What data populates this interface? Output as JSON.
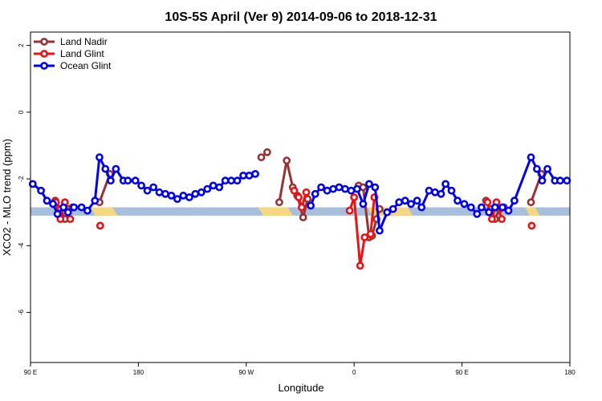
{
  "chart_data": {
    "type": "line",
    "title": "10S-5S April (Ver 9)   2014-09-06 to 2018-12-31",
    "xlabel": "Longitude",
    "ylabel": "XCO2 - MLO trend (ppm)",
    "xlim": [
      0,
      360
    ],
    "ylim": [
      -7.5,
      2.4
    ],
    "x_ticks": [
      {
        "value": 0,
        "label": "90 E"
      },
      {
        "value": 72,
        "label": "180"
      },
      {
        "value": 144,
        "label": "90 W"
      },
      {
        "value": 216,
        "label": "0"
      },
      {
        "value": 288,
        "label": "90 E"
      },
      {
        "value": 360,
        "label": "180"
      }
    ],
    "y_ticks": [
      2,
      0,
      -2,
      -4,
      -6
    ],
    "grid": false,
    "legend_position": "top-left",
    "band": {
      "y_range": [
        -3.1,
        -2.85
      ],
      "base_color": "#a7bfdc",
      "highlight_color": "#f6d67e",
      "highlight_ranges": [
        [
          40,
          58
        ],
        [
          152,
          175
        ],
        [
          225,
          255
        ],
        [
          330,
          340
        ]
      ]
    },
    "series": [
      {
        "name": "Land Nadir",
        "color": "#993333",
        "segments": [
          [
            [
              16.5,
              -2.65
            ],
            [
              20,
              -2.9
            ],
            [
              23,
              -3.2
            ],
            [
              25.5,
              -2.9
            ],
            [
              28,
              -2.85
            ]
          ],
          [
            [
              46,
              -2.7
            ],
            [
              53,
              -1.85
            ]
          ],
          [
            [
              154,
              -1.35
            ],
            [
              158,
              -1.2
            ]
          ],
          [
            [
              166,
              -2.7
            ],
            [
              171,
              -1.45
            ],
            [
              175,
              -2.25
            ],
            [
              178,
              -2.5
            ],
            [
              182,
              -3.15
            ],
            [
              185,
              -2.6
            ]
          ],
          [
            [
              219,
              -2.2
            ],
            [
              222,
              -2.25
            ],
            [
              226,
              -3.75
            ],
            [
              228,
              -3.7
            ],
            [
              231,
              -3.2
            ],
            [
              233,
              -2.9
            ]
          ],
          [
            [
              304,
              -2.65
            ],
            [
              307,
              -2.9
            ],
            [
              310,
              -3.2
            ],
            [
              313,
              -2.9
            ],
            [
              316,
              -2.85
            ]
          ],
          [
            [
              334,
              -2.7
            ],
            [
              341,
              -1.85
            ]
          ]
        ]
      },
      {
        "name": "Land Glint",
        "color": "#ee1111",
        "segments": [
          [
            [
              17,
              -2.7
            ],
            [
              20,
              -3.2
            ],
            [
              23,
              -2.7
            ],
            [
              26.5,
              -3.2
            ]
          ],
          [
            [
              46.5,
              -3.4
            ]
          ],
          [
            [
              176,
              -2.35
            ],
            [
              179,
              -2.55
            ],
            [
              181,
              -2.85
            ],
            [
              184,
              -2.4
            ]
          ],
          [
            [
              213,
              -2.95
            ],
            [
              216,
              -2.55
            ],
            [
              220,
              -4.6
            ],
            [
              223,
              -3.75
            ],
            [
              227,
              -3.65
            ],
            [
              229.5,
              -2.55
            ]
          ],
          [
            [
              305,
              -2.7
            ],
            [
              308,
              -3.2
            ],
            [
              311,
              -2.7
            ],
            [
              314.5,
              -3.2
            ]
          ],
          [
            [
              334.5,
              -3.4
            ]
          ]
        ]
      },
      {
        "name": "Ocean Glint",
        "color": "#0000ee",
        "segments": [
          [
            [
              1.5,
              -2.15
            ],
            [
              7,
              -2.35
            ],
            [
              11,
              -2.65
            ],
            [
              15,
              -2.75
            ],
            [
              18,
              -3.05
            ],
            [
              22,
              -2.85
            ],
            [
              25,
              -3.0
            ],
            [
              29,
              -2.85
            ],
            [
              34,
              -2.85
            ],
            [
              38,
              -2.95
            ],
            [
              43,
              -2.65
            ],
            [
              46,
              -1.35
            ],
            [
              50,
              -1.7
            ],
            [
              53.5,
              -2.05
            ],
            [
              57,
              -1.7
            ],
            [
              62,
              -2.05
            ],
            [
              65,
              -2.05
            ],
            [
              70,
              -2.05
            ],
            [
              74,
              -2.2
            ],
            [
              78,
              -2.35
            ],
            [
              82,
              -2.25
            ],
            [
              86,
              -2.4
            ],
            [
              90,
              -2.45
            ],
            [
              94,
              -2.5
            ],
            [
              98,
              -2.6
            ],
            [
              102,
              -2.5
            ],
            [
              106,
              -2.55
            ],
            [
              110,
              -2.45
            ],
            [
              114,
              -2.4
            ],
            [
              118,
              -2.3
            ],
            [
              122,
              -2.2
            ],
            [
              126,
              -2.25
            ],
            [
              130,
              -2.05
            ],
            [
              134,
              -2.05
            ],
            [
              138,
              -2.05
            ],
            [
              142,
              -1.9
            ],
            [
              146,
              -1.9
            ],
            [
              150,
              -1.85
            ]
          ],
          [
            [
              187,
              -2.8
            ],
            [
              190,
              -2.45
            ],
            [
              194,
              -2.25
            ],
            [
              198,
              -2.35
            ],
            [
              202,
              -2.3
            ],
            [
              206,
              -2.25
            ],
            [
              210,
              -2.3
            ],
            [
              214,
              -2.35
            ],
            [
              218,
              -2.3
            ],
            [
              222,
              -2.75
            ],
            [
              226,
              -2.15
            ],
            [
              230,
              -2.25
            ],
            [
              233,
              -3.55
            ],
            [
              238,
              -3.0
            ],
            [
              242,
              -2.9
            ],
            [
              246,
              -2.7
            ],
            [
              250,
              -2.65
            ],
            [
              254,
              -2.75
            ],
            [
              258,
              -2.65
            ],
            [
              261,
              -2.85
            ],
            [
              266,
              -2.35
            ],
            [
              270,
              -2.4
            ],
            [
              274,
              -2.45
            ],
            [
              277,
              -2.15
            ],
            [
              281,
              -2.35
            ],
            [
              285,
              -2.65
            ],
            [
              289.5,
              -2.75
            ],
            [
              294,
              -2.85
            ],
            [
              298,
              -3.05
            ],
            [
              301,
              -2.85
            ],
            [
              306,
              -3.0
            ],
            [
              310,
              -2.85
            ],
            [
              315,
              -2.85
            ],
            [
              319,
              -2.95
            ],
            [
              323,
              -2.65
            ],
            [
              334,
              -1.35
            ],
            [
              338,
              -1.7
            ],
            [
              341.5,
              -2.05
            ],
            [
              345,
              -1.7
            ],
            [
              350,
              -2.05
            ],
            [
              353.5,
              -2.05
            ],
            [
              358,
              -2.05
            ]
          ]
        ]
      }
    ]
  }
}
